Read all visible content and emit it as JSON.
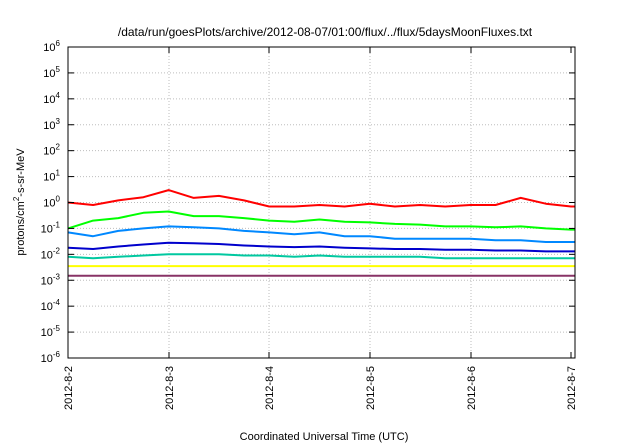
{
  "chart_data": {
    "type": "line",
    "title": "/data/run/goesPlots/archive/2012-08-07/01:00/flux/../flux/5daysMoonFluxes.txt",
    "xlabel": "Coordinated Universal Time (UTC)",
    "ylabel": "protons/cm²-s-sr-MeV",
    "ylabel_parts": {
      "pre": "protons/cm",
      "sup": "2",
      "post": "-s-sr-MeV"
    },
    "x_ticks": [
      "2012-8-2",
      "2012-8-3",
      "2012-8-4",
      "2012-8-5",
      "2012-8-6",
      "2012-8-7"
    ],
    "y_scale": "log",
    "ylim": [
      1e-06,
      1000000.0
    ],
    "y_ticks": [
      {
        "base": "10",
        "exp": "-6"
      },
      {
        "base": "10",
        "exp": "-5"
      },
      {
        "base": "10",
        "exp": "-4"
      },
      {
        "base": "10",
        "exp": "-3"
      },
      {
        "base": "10",
        "exp": "-2"
      },
      {
        "base": "10",
        "exp": "-1"
      },
      {
        "base": "10",
        "exp": "0"
      },
      {
        "base": "10",
        "exp": "1"
      },
      {
        "base": "10",
        "exp": "2"
      },
      {
        "base": "10",
        "exp": "3"
      },
      {
        "base": "10",
        "exp": "4"
      },
      {
        "base": "10",
        "exp": "5"
      },
      {
        "base": "10",
        "exp": "6"
      }
    ],
    "grid": true,
    "x": [
      0,
      0.25,
      0.5,
      0.75,
      1.0,
      1.25,
      1.5,
      1.75,
      2.0,
      2.25,
      2.5,
      2.75,
      3.0,
      3.25,
      3.5,
      3.75,
      4.0,
      4.25,
      4.5,
      4.75,
      5.0,
      5.04
    ],
    "series": [
      {
        "color": "#ff0000",
        "values": [
          1.0,
          0.8,
          1.2,
          1.6,
          3.0,
          1.5,
          1.8,
          1.2,
          0.7,
          0.7,
          0.8,
          0.7,
          0.9,
          0.7,
          0.8,
          0.7,
          0.8,
          0.8,
          1.5,
          0.9,
          0.7,
          0.7
        ]
      },
      {
        "color": "#00ff00",
        "values": [
          0.1,
          0.2,
          0.25,
          0.4,
          0.45,
          0.3,
          0.3,
          0.25,
          0.2,
          0.18,
          0.22,
          0.18,
          0.17,
          0.15,
          0.14,
          0.12,
          0.12,
          0.11,
          0.12,
          0.1,
          0.09,
          0.09
        ]
      },
      {
        "color": "#0088ff",
        "values": [
          0.07,
          0.05,
          0.08,
          0.1,
          0.12,
          0.11,
          0.1,
          0.08,
          0.07,
          0.06,
          0.07,
          0.05,
          0.05,
          0.04,
          0.04,
          0.04,
          0.04,
          0.035,
          0.035,
          0.03,
          0.03,
          0.03
        ]
      },
      {
        "color": "#0000cc",
        "values": [
          0.018,
          0.016,
          0.02,
          0.024,
          0.028,
          0.027,
          0.025,
          0.022,
          0.02,
          0.019,
          0.02,
          0.018,
          0.017,
          0.016,
          0.016,
          0.015,
          0.015,
          0.014,
          0.014,
          0.013,
          0.013,
          0.013
        ]
      },
      {
        "color": "#00c8a0",
        "values": [
          0.008,
          0.007,
          0.008,
          0.009,
          0.01,
          0.01,
          0.01,
          0.009,
          0.009,
          0.008,
          0.009,
          0.008,
          0.008,
          0.008,
          0.008,
          0.007,
          0.007,
          0.007,
          0.007,
          0.007,
          0.007,
          0.007
        ]
      },
      {
        "color": "#ffff00",
        "values": [
          0.0035,
          0.0035,
          0.0035,
          0.0035,
          0.0035,
          0.0035,
          0.0035,
          0.0035,
          0.0035,
          0.0035,
          0.0035,
          0.0035,
          0.0035,
          0.0035,
          0.0035,
          0.0035,
          0.0035,
          0.0035,
          0.0035,
          0.0035,
          0.0035,
          0.0035
        ]
      },
      {
        "color": "#883366",
        "values": [
          0.0015,
          0.0015,
          0.0015,
          0.0015,
          0.0015,
          0.0015,
          0.0015,
          0.0015,
          0.0015,
          0.0015,
          0.0015,
          0.0015,
          0.0015,
          0.0015,
          0.0015,
          0.0015,
          0.0015,
          0.0015,
          0.0015,
          0.0015,
          0.0015,
          0.0015
        ]
      }
    ]
  }
}
